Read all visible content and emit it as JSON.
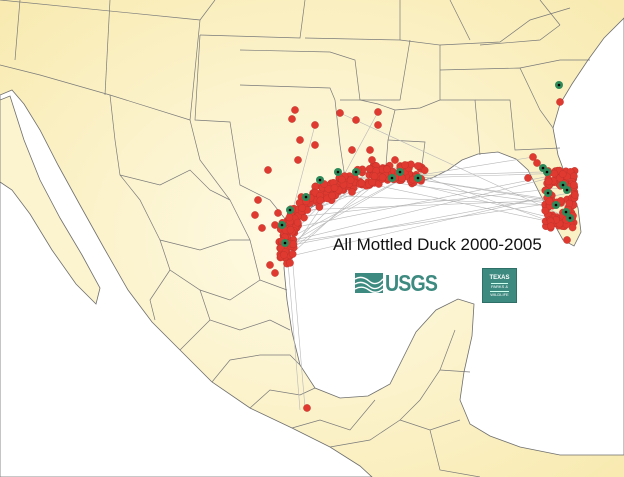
{
  "map": {
    "title": "All Mottled Duck 2000-2005",
    "colors": {
      "land": "#fbf3c8",
      "water": "#ffffff",
      "border": "#7a7a7a",
      "point": "#e03a30",
      "point_recaptured": "#2e8a5a",
      "track_line": "#b8b8b8"
    },
    "logos": {
      "usgs": {
        "text": "USGS",
        "color": "#3d8a80"
      },
      "tpw": {
        "line1": "TEXAS",
        "line2": "PARKS &",
        "line3": "WILDLIFE",
        "color": "#3d8a80"
      }
    }
  }
}
